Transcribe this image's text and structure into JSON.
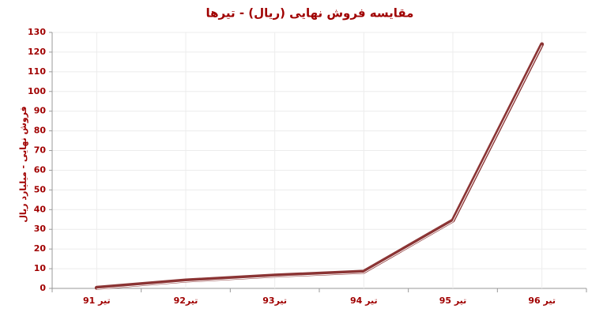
{
  "chart_data": {
    "type": "line",
    "title": "مقایسه فروش نهایی (ریال) - تیرها",
    "y_label": "فروش نهایی - میلیارد ریال",
    "categories": [
      "تیر 91",
      "تیر92",
      "تیر93",
      "تیر 94",
      "تیر 95",
      "تیر 96"
    ],
    "series": [
      {
        "name": "فروش نهایی",
        "color": "#8b3434",
        "values": [
          0.3,
          4,
          6.5,
          8.5,
          34.5,
          124
        ]
      }
    ],
    "ylim": [
      0,
      130
    ],
    "yticks": [
      0,
      10,
      20,
      30,
      40,
      50,
      60,
      70,
      80,
      90,
      100,
      110,
      120,
      130
    ],
    "grid": true
  }
}
